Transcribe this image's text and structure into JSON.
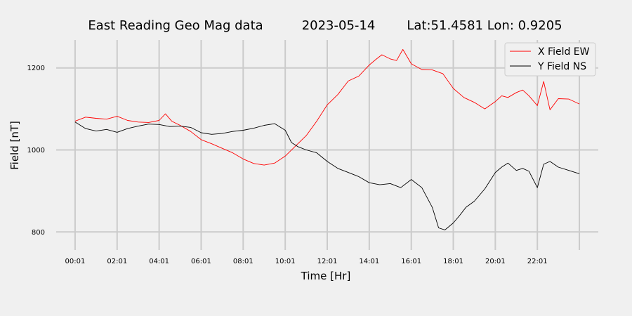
{
  "chart_data": {
    "type": "line",
    "title": {
      "station": "East Reading Geo Mag data",
      "date": "2023-05-14",
      "location": "Lat:51.4581  Lon: 0.9205"
    },
    "xlabel": "Time  [Hr]",
    "ylabel": "Field  [nT]",
    "x_ticks": [
      "00:01",
      "02:01",
      "04:01",
      "06:01",
      "08:01",
      "10:01",
      "12:01",
      "14:01",
      "16:01",
      "18:01",
      "20:01",
      "22:01"
    ],
    "x_tick_hours": [
      0,
      2,
      4,
      6,
      8,
      10,
      12,
      14,
      16,
      18,
      20,
      22
    ],
    "x_gridlines_hours": [
      0,
      2,
      4,
      6,
      8,
      10,
      12,
      14,
      16,
      18,
      20,
      22,
      24
    ],
    "xlim": [
      -0.9,
      24.9
    ],
    "y_ticks": [
      800,
      1000,
      1200
    ],
    "ylim": [
      756,
      1268
    ],
    "grid": true,
    "legend_position": "top-right",
    "series": [
      {
        "name": "X Field EW",
        "color": "#ff0000",
        "x": [
          0,
          0.5,
          1,
          1.5,
          2,
          2.5,
          3,
          3.5,
          4,
          4.3,
          4.6,
          5,
          5.5,
          6,
          6.5,
          7,
          7.5,
          8,
          8.5,
          9,
          9.5,
          10,
          10.5,
          11,
          11.5,
          12,
          12.5,
          13,
          13.5,
          14,
          14.3,
          14.6,
          15,
          15.3,
          15.6,
          16,
          16.5,
          17,
          17.5,
          18,
          18.5,
          19,
          19.5,
          20,
          20.3,
          20.6,
          21,
          21.3,
          21.6,
          22,
          22.3,
          22.6,
          23,
          23.5,
          24
        ],
        "y": [
          1070,
          1080,
          1077,
          1075,
          1082,
          1072,
          1068,
          1067,
          1072,
          1088,
          1070,
          1060,
          1045,
          1025,
          1015,
          1004,
          993,
          978,
          967,
          963,
          968,
          985,
          1010,
          1035,
          1070,
          1110,
          1135,
          1168,
          1180,
          1207,
          1220,
          1232,
          1222,
          1218,
          1245,
          1210,
          1196,
          1195,
          1186,
          1150,
          1128,
          1116,
          1100,
          1118,
          1132,
          1128,
          1140,
          1146,
          1132,
          1108,
          1167,
          1098,
          1125,
          1124,
          1112
        ]
      },
      {
        "name": "Y Field NS",
        "color": "#000000",
        "x": [
          0,
          0.5,
          1,
          1.5,
          2,
          2.5,
          3,
          3.5,
          4,
          4.5,
          5,
          5.5,
          6,
          6.5,
          7,
          7.5,
          8,
          8.5,
          9,
          9.5,
          10,
          10.3,
          10.6,
          11,
          11.5,
          12,
          12.5,
          13,
          13.5,
          14,
          14.5,
          15,
          15.5,
          16,
          16.5,
          17,
          17.3,
          17.6,
          18,
          18.3,
          18.6,
          19,
          19.5,
          20,
          20.3,
          20.6,
          21,
          21.3,
          21.6,
          22,
          22.3,
          22.6,
          23,
          23.5,
          24
        ],
        "y": [
          1068,
          1052,
          1046,
          1050,
          1043,
          1052,
          1058,
          1063,
          1062,
          1057,
          1058,
          1055,
          1042,
          1038,
          1040,
          1045,
          1048,
          1053,
          1060,
          1064,
          1048,
          1018,
          1008,
          1000,
          993,
          972,
          955,
          945,
          935,
          920,
          915,
          918,
          908,
          928,
          908,
          860,
          810,
          805,
          822,
          840,
          860,
          875,
          905,
          945,
          958,
          968,
          950,
          955,
          948,
          908,
          965,
          972,
          958,
          950,
          942
        ]
      }
    ]
  }
}
